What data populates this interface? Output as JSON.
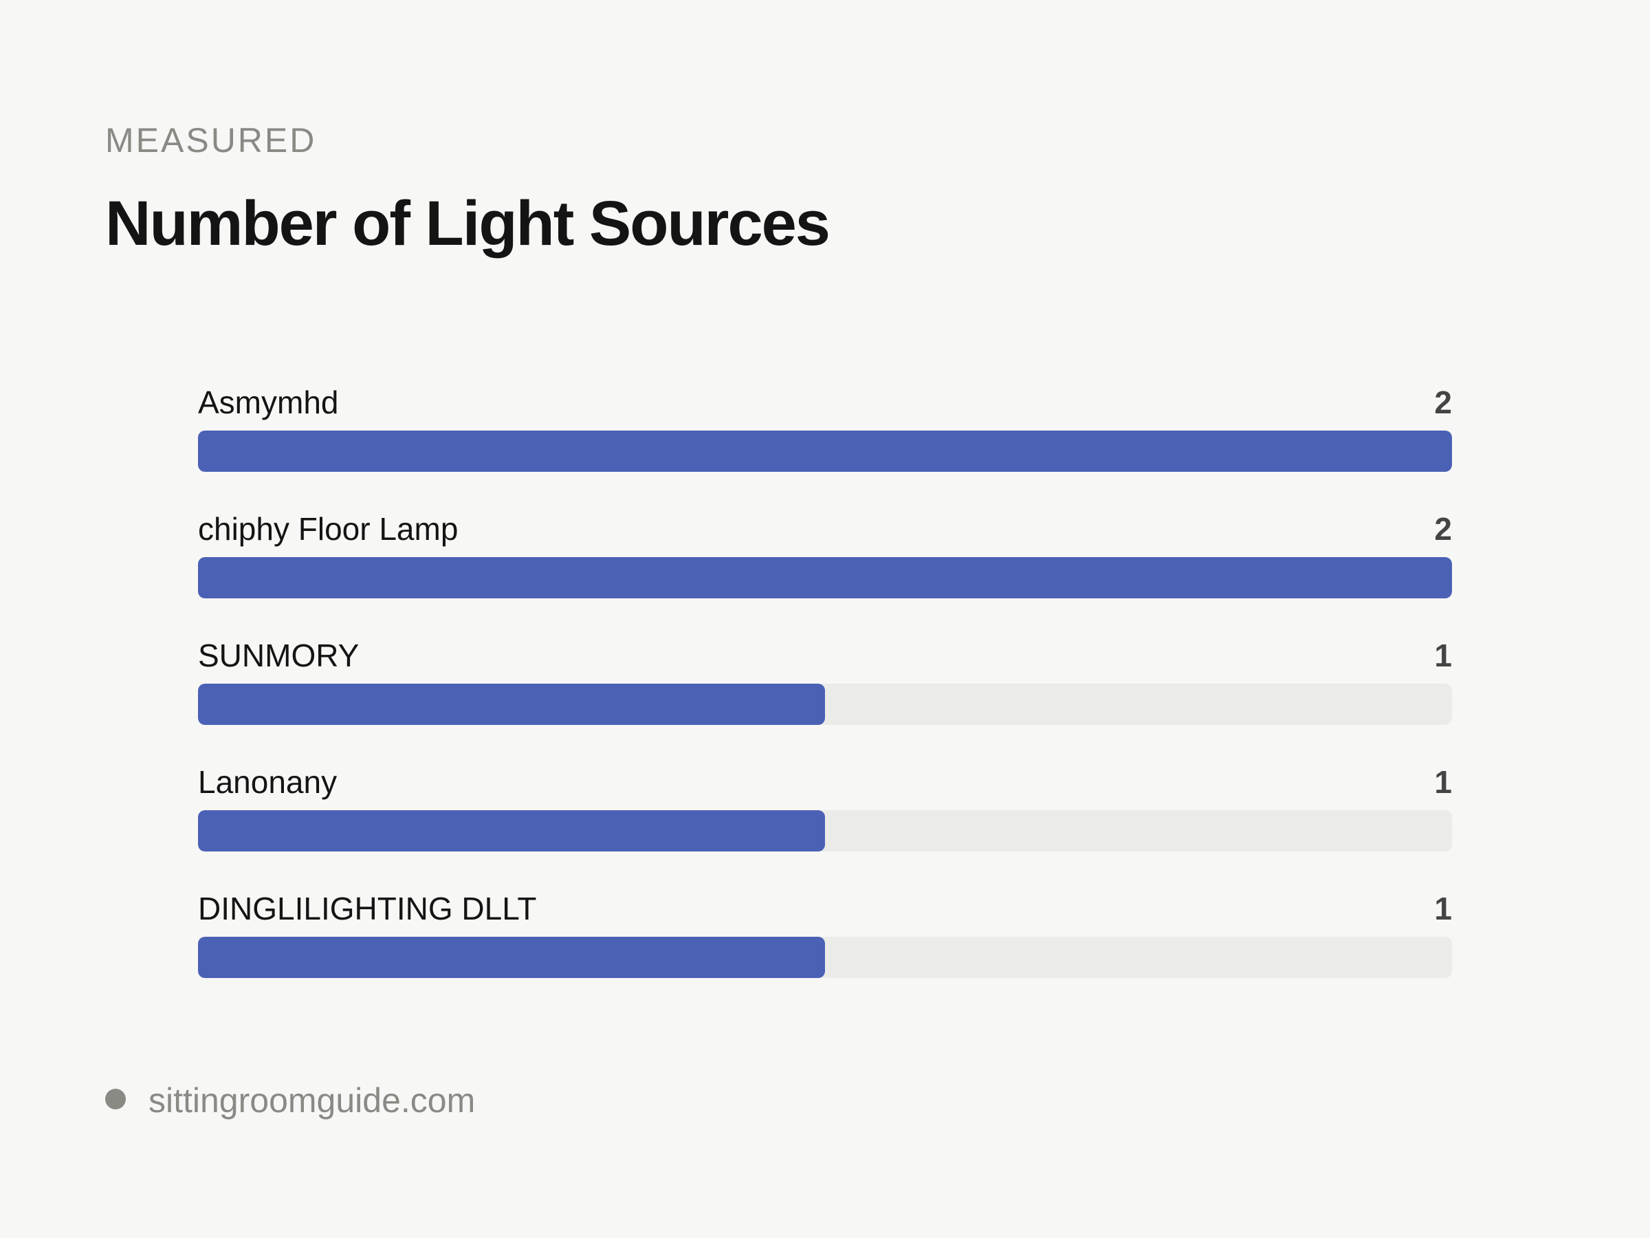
{
  "header": {
    "eyebrow": "MEASURED",
    "title": "Number of Light Sources"
  },
  "chart_data": {
    "type": "bar",
    "orientation": "horizontal",
    "title": "Number of Light Sources",
    "categories": [
      "Asmymhd",
      "chiphy Floor Lamp",
      "SUNMORY",
      "Lanonany",
      "DINGLILIGHTING DLLT"
    ],
    "values": [
      2,
      2,
      1,
      1,
      1
    ],
    "xlim": [
      0,
      2
    ],
    "bar_color": "#4a61b5",
    "track_color": "#ebebe8",
    "grid": false,
    "legend": "none"
  },
  "footer": {
    "source": "sittingroomguide.com"
  }
}
